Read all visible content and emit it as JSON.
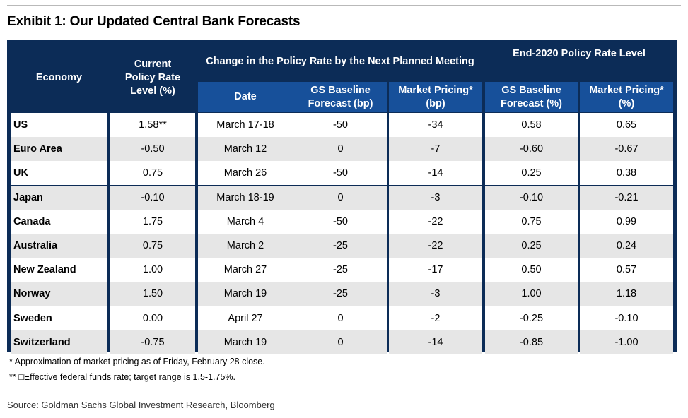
{
  "title": "Exhibit 1: Our Updated Central Bank Forecasts",
  "headers": {
    "economy": "Economy",
    "current_rate": "Current Policy Rate Level (%)",
    "change_group": "Change in the Policy Rate by the Next Planned Meeting",
    "end2020_group": "End-2020 Policy Rate Level",
    "date": "Date",
    "gs_change": "GS  Baseline Forecast (bp)",
    "mkt_change": "Market Pricing* (bp)",
    "gs_level": "GS Baseline Forecast (%)",
    "mkt_level": "Market Pricing* (%)"
  },
  "colors": {
    "header_dark": "#0c2c57",
    "header_blue": "#17509a",
    "row_alt": "#e6e6e6"
  },
  "chart_data": {
    "type": "table",
    "title": "Exhibit 1: Our Updated Central Bank Forecasts",
    "columns": [
      "Economy",
      "Current Policy Rate Level (%)",
      "Date",
      "GS  Baseline Forecast (bp)",
      "Market Pricing* (bp)",
      "GS Baseline Forecast (%)",
      "Market Pricing* (%)"
    ],
    "rows": [
      [
        "US",
        "1.58**",
        "March 17-18",
        "-50",
        "-34",
        "0.58",
        "0.65"
      ],
      [
        "Euro Area",
        "-0.50",
        "March 12",
        "0",
        "-7",
        "-0.60",
        "-0.67"
      ],
      [
        "UK",
        "0.75",
        "March 26",
        "-50",
        "-14",
        "0.25",
        "0.38"
      ],
      [
        "Japan",
        "-0.10",
        "March 18-19",
        "0",
        "-3",
        "-0.10",
        "-0.21"
      ],
      [
        "Canada",
        "1.75",
        "March 4",
        "-50",
        "-22",
        "0.75",
        "0.99"
      ],
      [
        "Australia",
        "0.75",
        "March  2",
        "-25",
        "-22",
        "0.25",
        "0.24"
      ],
      [
        "New Zealand",
        "1.00",
        "March 27",
        "-25",
        "-17",
        "0.50",
        "0.57"
      ],
      [
        "Norway",
        "1.50",
        "March 19",
        "-25",
        "-3",
        "1.00",
        "1.18"
      ],
      [
        "Sweden",
        "0.00",
        "April 27",
        "0",
        "-2",
        "-0.25",
        "-0.10"
      ],
      [
        "Switzerland",
        "-0.75",
        "March 19",
        "0",
        "-14",
        "-0.85",
        "-1.00"
      ]
    ]
  },
  "footnotes": {
    "note1": "* Approximation of market pricing as of Friday, February 28 close.",
    "note2": "** □Effective federal funds rate; target range is 1.5-1.75%."
  },
  "source": "Source: Goldman Sachs Global Investment Research, Bloomberg"
}
